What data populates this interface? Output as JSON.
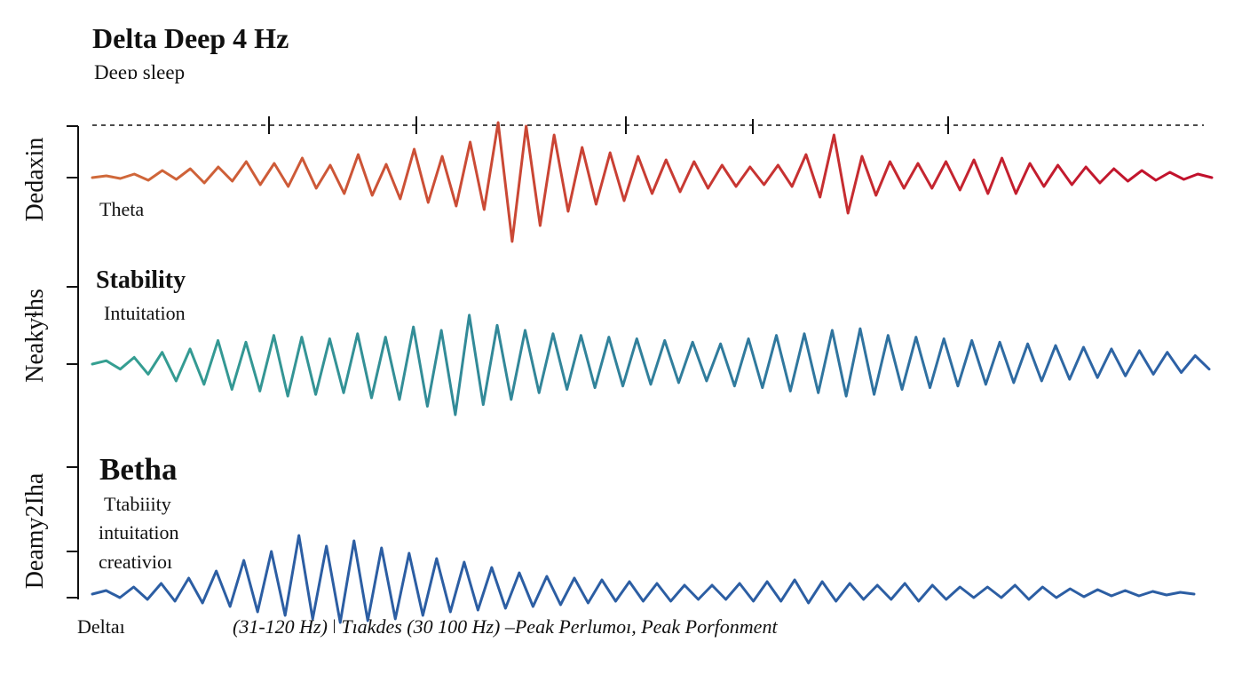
{
  "header": {
    "title": "Delta Deep 4 Hz",
    "subtitle": "Deeɒ sleep"
  },
  "labels": {
    "theta": "Theta",
    "stability": "Stability",
    "intuition": "Intuitation",
    "betha": "Betha",
    "betha_lines": [
      "Ttabiiity",
      "intuitation",
      "creativioı"
    ]
  },
  "chart_data": [
    {
      "type": "line",
      "title": "Delta Deep 4 Hz",
      "ylabel": "Dedaxin",
      "xlabel": "",
      "series": [
        {
          "name": "top-waveform",
          "x": [
            0,
            1,
            2,
            3,
            4,
            5,
            6,
            7,
            8,
            9,
            10,
            11,
            12,
            13,
            14,
            15,
            16,
            17,
            18,
            19,
            20,
            21,
            22,
            23,
            24,
            25,
            26,
            27,
            28,
            29,
            30,
            31,
            32,
            33,
            34,
            35,
            36,
            37,
            38,
            39,
            40,
            41,
            42,
            43,
            44,
            45,
            46,
            47,
            48,
            49,
            50,
            51,
            52,
            53,
            54,
            55,
            56,
            57,
            58,
            59,
            60,
            61,
            62,
            63,
            64,
            65,
            66,
            67,
            68,
            69,
            70,
            71,
            72,
            73,
            74,
            75,
            76,
            77,
            78,
            79,
            80
          ],
          "values": [
            0,
            2,
            -1,
            4,
            -3,
            8,
            -2,
            10,
            -6,
            12,
            -4,
            18,
            -8,
            16,
            -10,
            22,
            -12,
            14,
            -18,
            26,
            -20,
            15,
            -24,
            32,
            -28,
            24,
            -32,
            40,
            -36,
            62,
            -72,
            58,
            -54,
            48,
            -38,
            34,
            -30,
            28,
            -26,
            24,
            -18,
            20,
            -16,
            18,
            -12,
            14,
            -10,
            12,
            -8,
            14,
            -10,
            26,
            -22,
            48,
            -40,
            24,
            -20,
            18,
            -12,
            16,
            -12,
            18,
            -14,
            20,
            -18,
            22,
            -18,
            16,
            -10,
            14,
            -8,
            12,
            -6,
            10,
            -4,
            8,
            -3,
            6,
            -2,
            4,
            0
          ]
        }
      ],
      "ylim": [
        -80,
        80
      ]
    },
    {
      "type": "line",
      "title": "",
      "ylabel": "Neakyɬhs",
      "xlabel": "",
      "series": [
        {
          "name": "middle-waveform",
          "x": [
            0,
            1,
            2,
            3,
            4,
            5,
            6,
            7,
            8,
            9,
            10,
            11,
            12,
            13,
            14,
            15,
            16,
            17,
            18,
            19,
            20,
            21,
            22,
            23,
            24,
            25,
            26,
            27,
            28,
            29,
            30,
            31,
            32,
            33,
            34,
            35,
            36,
            37,
            38,
            39,
            40,
            41,
            42,
            43,
            44,
            45,
            46,
            47,
            48,
            49,
            50,
            51,
            52,
            53,
            54,
            55,
            56,
            57,
            58,
            59,
            60,
            61,
            62,
            63,
            64,
            65,
            66,
            67,
            68,
            69,
            70,
            71,
            72,
            73,
            74,
            75,
            76,
            77,
            78,
            79,
            80
          ],
          "values": [
            0,
            4,
            -6,
            8,
            -12,
            14,
            -20,
            18,
            -24,
            28,
            -30,
            26,
            -32,
            34,
            -38,
            32,
            -36,
            30,
            -34,
            36,
            -40,
            32,
            -42,
            44,
            -50,
            40,
            -60,
            58,
            -48,
            46,
            -42,
            40,
            -34,
            36,
            -30,
            34,
            -28,
            32,
            -26,
            30,
            -24,
            28,
            -22,
            26,
            -20,
            24,
            -26,
            30,
            -28,
            34,
            -32,
            36,
            -34,
            40,
            -38,
            42,
            -36,
            34,
            -30,
            32,
            -28,
            30,
            -26,
            28,
            -24,
            26,
            -22,
            24,
            -20,
            22,
            -18,
            20,
            -16,
            18,
            -14,
            16,
            -12,
            14,
            -10,
            10,
            -6
          ]
        }
      ],
      "ylim": [
        -80,
        80
      ]
    },
    {
      "type": "line",
      "title": "",
      "ylabel": "Deamy2Iha",
      "xlabel": "",
      "series": [
        {
          "name": "bottom-waveform",
          "x": [
            0,
            1,
            2,
            3,
            4,
            5,
            6,
            7,
            8,
            9,
            10,
            11,
            12,
            13,
            14,
            15,
            16,
            17,
            18,
            19,
            20,
            21,
            22,
            23,
            24,
            25,
            26,
            27,
            28,
            29,
            30,
            31,
            32,
            33,
            34,
            35,
            36,
            37,
            38,
            39,
            40,
            41,
            42,
            43,
            44,
            45,
            46,
            47,
            48,
            49,
            50,
            51,
            52,
            53,
            54,
            55,
            56,
            57,
            58,
            59,
            60,
            61,
            62,
            63,
            64,
            65,
            66,
            67,
            68,
            69,
            70,
            71,
            72,
            73,
            74,
            75,
            76,
            77,
            78,
            79,
            80
          ],
          "values": [
            0,
            4,
            -4,
            8,
            -6,
            12,
            -8,
            18,
            -10,
            26,
            -14,
            38,
            -20,
            48,
            -24,
            66,
            -28,
            54,
            -32,
            60,
            -30,
            52,
            -28,
            46,
            -24,
            40,
            -20,
            36,
            -18,
            30,
            -16,
            24,
            -14,
            20,
            -12,
            18,
            -10,
            16,
            -8,
            14,
            -8,
            12,
            -8,
            10,
            -6,
            10,
            -6,
            12,
            -8,
            14,
            -8,
            16,
            -10,
            14,
            -8,
            12,
            -6,
            10,
            -6,
            12,
            -8,
            10,
            -6,
            8,
            -4,
            8,
            -4,
            10,
            -6,
            8,
            -4,
            6,
            -3,
            5,
            -2,
            4,
            -2,
            3,
            -1,
            2,
            0
          ]
        }
      ],
      "ylim": [
        -80,
        80
      ]
    }
  ],
  "footer": {
    "left": "Deltaı",
    "right": "(31-120 Hz) ǀ Tıakdes (30 100 Hz) –Peak Perlumoı, Peak Porfonment"
  },
  "axis_labels": {
    "top": "Dedaxin",
    "middle": "Neakyɬhs",
    "bottom": "Deamy2Iha"
  },
  "colors": {
    "top_start": "#d06a3a",
    "top_end": "#c10f2c",
    "middle_start": "#35a091",
    "middle_end": "#2d5fa6",
    "bottom": "#2c5ea3",
    "axis": "#111111"
  }
}
